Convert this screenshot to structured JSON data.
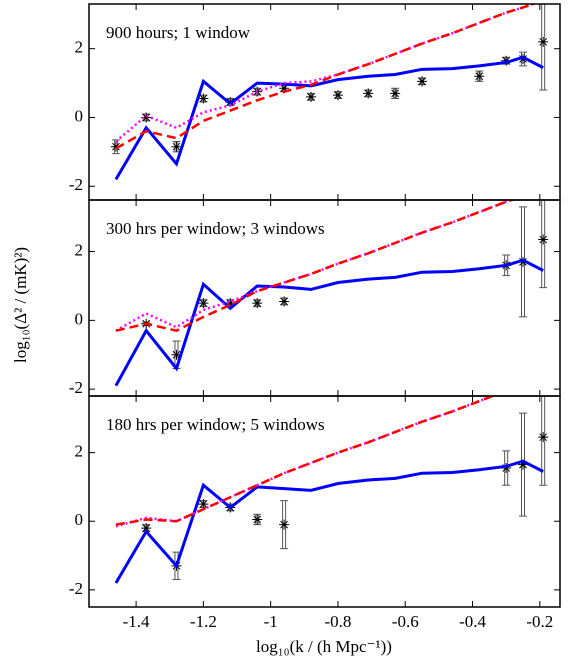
{
  "chart_data": [
    {
      "type": "line",
      "annotation": "900 hours; 1 window",
      "xlim": [
        -1.54,
        -0.14
      ],
      "xticks": [
        -1.4,
        -1.2,
        -1,
        -0.8,
        -0.6,
        -0.4,
        -0.2
      ],
      "ylim": [
        -2.4,
        3.3
      ],
      "yticks": [
        -2,
        0,
        2
      ],
      "x": [
        -1.46,
        -1.37,
        -1.28,
        -1.2,
        -1.12,
        -1.04,
        -0.96,
        -0.88,
        -0.8,
        -0.71,
        -0.63,
        -0.55,
        -0.46,
        -0.38,
        -0.3,
        -0.25,
        -0.19
      ],
      "series": [
        {
          "color": "#0000ff",
          "style": "solid",
          "values": [
            -1.8,
            -0.3,
            -1.35,
            1.05,
            0.4,
            1.0,
            0.97,
            0.92,
            1.1,
            1.2,
            1.25,
            1.4,
            1.42,
            1.5,
            1.6,
            1.75,
            1.45
          ]
        },
        {
          "color": "#ff00ff",
          "style": "dotted",
          "values": [
            -0.7,
            0.05,
            -0.3,
            0.15,
            0.35,
            0.75,
            1.0,
            1.05,
            1.25,
            1.55,
            1.85,
            2.15,
            2.45,
            2.75,
            3.05,
            3.2,
            3.4
          ]
        },
        {
          "color": "#ff0000",
          "style": "dashed",
          "values": [
            -0.9,
            -0.4,
            -0.6,
            -0.1,
            0.2,
            0.5,
            0.75,
            0.95,
            1.25,
            1.55,
            1.85,
            2.15,
            2.45,
            2.75,
            3.05,
            3.2,
            3.4
          ]
        }
      ],
      "points": {
        "color": "#000000",
        "x": [
          -1.46,
          -1.37,
          -1.28,
          -1.2,
          -1.12,
          -1.04,
          -0.96,
          -0.88,
          -0.8,
          -0.71,
          -0.63,
          -0.55,
          -0.38,
          -0.3,
          -0.25,
          -0.19
        ],
        "values": [
          -0.85,
          0.0,
          -0.85,
          0.55,
          0.45,
          0.75,
          0.85,
          0.6,
          0.65,
          0.7,
          0.7,
          1.05,
          1.2,
          1.65,
          1.7,
          2.2
        ],
        "errors": [
          0.2,
          0.1,
          0.15,
          0.1,
          0.1,
          0.1,
          0.1,
          0.1,
          0.1,
          0.1,
          0.15,
          0.1,
          0.15,
          0.1,
          0.2,
          1.4
        ]
      }
    },
    {
      "type": "line",
      "annotation": "300 hrs per window; 3 windows",
      "ylabel": "log₁₀(Δ² / (mK)²)",
      "xlim": [
        -1.54,
        -0.14
      ],
      "xticks": [
        -1.4,
        -1.2,
        -1,
        -0.8,
        -0.6,
        -0.4,
        -0.2
      ],
      "ylim": [
        -2.2,
        3.5
      ],
      "yticks": [
        -2,
        0,
        2
      ],
      "x": [
        -1.46,
        -1.37,
        -1.28,
        -1.2,
        -1.12,
        -1.04,
        -0.96,
        -0.88,
        -0.8,
        -0.71,
        -0.63,
        -0.55,
        -0.46,
        -0.38,
        -0.3,
        -0.25,
        -0.19
      ],
      "series": [
        {
          "color": "#0000ff",
          "style": "solid",
          "values": [
            -1.9,
            -0.3,
            -1.4,
            1.05,
            0.35,
            1.0,
            0.97,
            0.9,
            1.1,
            1.2,
            1.25,
            1.4,
            1.42,
            1.5,
            1.6,
            1.75,
            1.45
          ]
        },
        {
          "color": "#ff00ff",
          "style": "dotted",
          "values": [
            -0.3,
            0.2,
            -0.2,
            0.3,
            0.55,
            0.85,
            1.1,
            1.35,
            1.65,
            1.95,
            2.25,
            2.55,
            2.85,
            3.15,
            3.45,
            3.6,
            3.8
          ]
        },
        {
          "color": "#ff0000",
          "style": "dashed",
          "values": [
            -0.3,
            -0.1,
            -0.3,
            0.1,
            0.45,
            0.85,
            1.1,
            1.35,
            1.65,
            1.95,
            2.25,
            2.55,
            2.85,
            3.15,
            3.45,
            3.6,
            3.8
          ]
        }
      ],
      "points": {
        "color": "#000000",
        "x": [
          -1.37,
          -1.28,
          -1.2,
          -1.12,
          -1.04,
          -0.96,
          -0.3,
          -0.25,
          -0.19
        ],
        "values": [
          -0.1,
          -1.0,
          0.5,
          0.5,
          0.5,
          0.55,
          1.6,
          1.7,
          2.35
        ],
        "errors": [
          0.05,
          0.4,
          0.1,
          0.1,
          0.1,
          0.1,
          0.3,
          1.6,
          1.4
        ]
      }
    },
    {
      "type": "line",
      "annotation": "180 hrs per window; 5 windows",
      "xlabel": "log₁₀(k / (h Mpc⁻¹))",
      "xlim": [
        -1.54,
        -0.14
      ],
      "xticks": [
        -1.4,
        -1.2,
        -1,
        -0.8,
        -0.6,
        -0.4,
        -0.2
      ],
      "ylim": [
        -2.5,
        3.65
      ],
      "yticks": [
        -2,
        0,
        2
      ],
      "x": [
        -1.46,
        -1.37,
        -1.28,
        -1.2,
        -1.12,
        -1.04,
        -0.96,
        -0.88,
        -0.8,
        -0.71,
        -0.63,
        -0.55,
        -0.46,
        -0.38,
        -0.3,
        -0.25,
        -0.19
      ],
      "series": [
        {
          "color": "#0000ff",
          "style": "solid",
          "values": [
            -1.8,
            -0.3,
            -1.3,
            1.05,
            0.4,
            1.0,
            0.95,
            0.9,
            1.1,
            1.2,
            1.25,
            1.4,
            1.42,
            1.5,
            1.6,
            1.75,
            1.45
          ]
        },
        {
          "color": "#ff00ff",
          "style": "dotted",
          "values": [
            -0.15,
            0.1,
            0.0,
            0.35,
            0.7,
            1.05,
            1.4,
            1.7,
            2.0,
            2.3,
            2.6,
            2.9,
            3.2,
            3.5,
            3.8,
            3.95,
            4.1
          ]
        },
        {
          "color": "#ff0000",
          "style": "dashed",
          "values": [
            -0.1,
            0.05,
            0.0,
            0.35,
            0.7,
            1.05,
            1.4,
            1.7,
            2.0,
            2.3,
            2.6,
            2.9,
            3.2,
            3.5,
            3.8,
            3.95,
            4.1
          ]
        }
      ],
      "points": {
        "color": "#000000",
        "x": [
          -1.37,
          -1.28,
          -1.2,
          -1.12,
          -1.04,
          -0.96,
          -0.3,
          -0.25,
          -0.19
        ],
        "values": [
          -0.2,
          -1.3,
          0.5,
          0.4,
          0.05,
          -0.1,
          1.55,
          1.65,
          2.45
        ],
        "errors": [
          0.1,
          0.4,
          0.1,
          0.1,
          0.15,
          0.7,
          0.5,
          1.5,
          1.4
        ]
      }
    }
  ]
}
